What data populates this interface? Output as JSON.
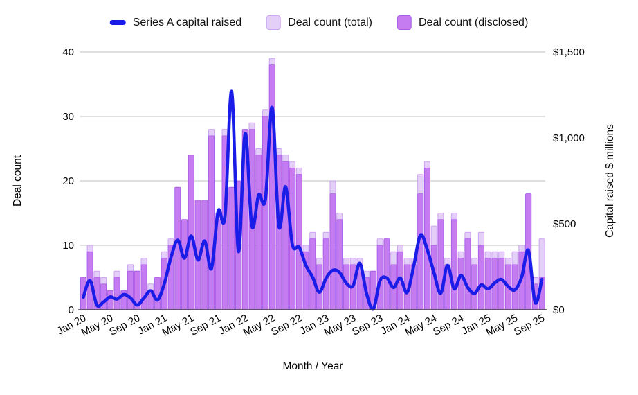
{
  "legend": {
    "series_a_label": "Series A capital raised",
    "total_label": "Deal count (total)",
    "disclosed_label": "Deal count (disclosed)"
  },
  "axes": {
    "left_title": "Deal count",
    "right_title": "Capital raised $ millions",
    "x_title": "Month / Year",
    "left_ticks": [
      "0",
      "10",
      "20",
      "30",
      "40"
    ],
    "right_ticks": [
      "$0",
      "$500",
      "$1,000",
      "$1,500"
    ],
    "x_tick_labels": [
      "Jan 20",
      "May 20",
      "Sep 20",
      "Jan 21",
      "May 21",
      "Sep 21",
      "Jan 22",
      "May 22",
      "Sep 22",
      "Jan 23",
      "May 23",
      "Sep 23",
      "Jan 24",
      "May 24",
      "Sep 24",
      "Jan 25",
      "May 25",
      "Sep 25"
    ]
  },
  "colors": {
    "line": "#1a1ce8",
    "bar_total": "#e4cff9",
    "bar_total_edge": "#cda4f1",
    "bar_disclosed": "#c47cf0",
    "bar_disclosed_edge": "#a95ae4",
    "gridline": "#cccccc",
    "axis_line": "#424242",
    "text": "#000000"
  },
  "chart_data": {
    "type": "combo bar+line",
    "x": [
      "Jan 20",
      "Feb 20",
      "Mar 20",
      "Apr 20",
      "May 20",
      "Jun 20",
      "Jul 20",
      "Aug 20",
      "Sep 20",
      "Oct 20",
      "Nov 20",
      "Dec 20",
      "Jan 21",
      "Feb 21",
      "Mar 21",
      "Apr 21",
      "May 21",
      "Jun 21",
      "Jul 21",
      "Aug 21",
      "Sep 21",
      "Oct 21",
      "Nov 21",
      "Dec 21",
      "Jan 22",
      "Feb 22",
      "Mar 22",
      "Apr 22",
      "May 22",
      "Jun 22",
      "Jul 22",
      "Aug 22",
      "Sep 22",
      "Oct 22",
      "Nov 22",
      "Dec 22",
      "Jan 23",
      "Feb 23",
      "Mar 23",
      "Apr 23",
      "May 23",
      "Jun 23",
      "Jul 23",
      "Aug 23",
      "Sep 23",
      "Oct 23",
      "Nov 23",
      "Dec 23",
      "Jan 24",
      "Feb 24",
      "Mar 24",
      "Apr 24",
      "May 24",
      "Jun 24",
      "Jul 24",
      "Aug 24",
      "Sep 24",
      "Oct 24",
      "Nov 24",
      "Dec 24",
      "Jan 25",
      "Feb 25",
      "Mar 25",
      "Apr 25",
      "May 25",
      "Jun 25",
      "Jul 25",
      "Aug 25",
      "Sep 25"
    ],
    "series": [
      {
        "name": "Deal count (total)",
        "type": "bar",
        "axis": "left",
        "values": [
          5,
          10,
          6,
          5,
          3,
          6,
          3,
          7,
          6,
          8,
          4,
          5,
          9,
          11,
          19,
          14,
          24,
          17,
          17,
          28,
          15,
          28,
          19,
          20,
          28,
          29,
          25,
          31,
          39,
          25,
          24,
          23,
          22,
          10,
          12,
          8,
          12,
          20,
          15,
          8,
          8,
          8,
          6,
          6,
          11,
          11,
          9,
          10,
          8,
          8,
          21,
          23,
          13,
          15,
          8,
          15,
          9,
          12,
          8,
          12,
          9,
          9,
          9,
          8,
          9,
          10,
          18,
          5,
          11
        ]
      },
      {
        "name": "Deal count (disclosed)",
        "type": "bar",
        "axis": "left",
        "values": [
          5,
          9,
          5,
          4,
          3,
          5,
          3,
          6,
          6,
          7,
          3,
          5,
          8,
          10,
          19,
          14,
          24,
          17,
          17,
          27,
          14,
          27,
          19,
          20,
          28,
          28,
          24,
          30,
          38,
          24,
          23,
          22,
          21,
          9,
          11,
          7,
          11,
          18,
          14,
          7,
          7,
          7,
          5,
          6,
          10,
          11,
          7,
          9,
          7,
          7,
          18,
          22,
          10,
          14,
          7,
          14,
          8,
          11,
          7,
          10,
          8,
          8,
          8,
          7,
          7,
          9,
          18,
          4,
          5
        ]
      },
      {
        "name": "Series A capital raised",
        "type": "line",
        "axis": "right",
        "values": [
          73,
          170,
          28,
          45,
          75,
          62,
          89,
          69,
          28,
          69,
          110,
          57,
          150,
          305,
          405,
          300,
          430,
          290,
          400,
          240,
          575,
          540,
          1270,
          340,
          1026,
          487,
          669,
          642,
          1177,
          487,
          716,
          379,
          365,
          258,
          190,
          102,
          183,
          230,
          217,
          155,
          140,
          270,
          95,
          5,
          170,
          185,
          130,
          185,
          100,
          255,
          435,
          350,
          215,
          96,
          258,
          122,
          200,
          130,
          95,
          145,
          122,
          156,
          177,
          136,
          116,
          190,
          345,
          42,
          177
        ]
      }
    ],
    "left_axis": {
      "label": "Deal count",
      "range": [
        0,
        40
      ],
      "tick_step": 10
    },
    "right_axis": {
      "label": "Capital raised $ millions",
      "range": [
        0,
        1500
      ],
      "tick_step": 500
    },
    "x_axis": {
      "label": "Month / Year",
      "tick_every": 4
    },
    "grid": "horizontal only",
    "legend_position": "top"
  }
}
